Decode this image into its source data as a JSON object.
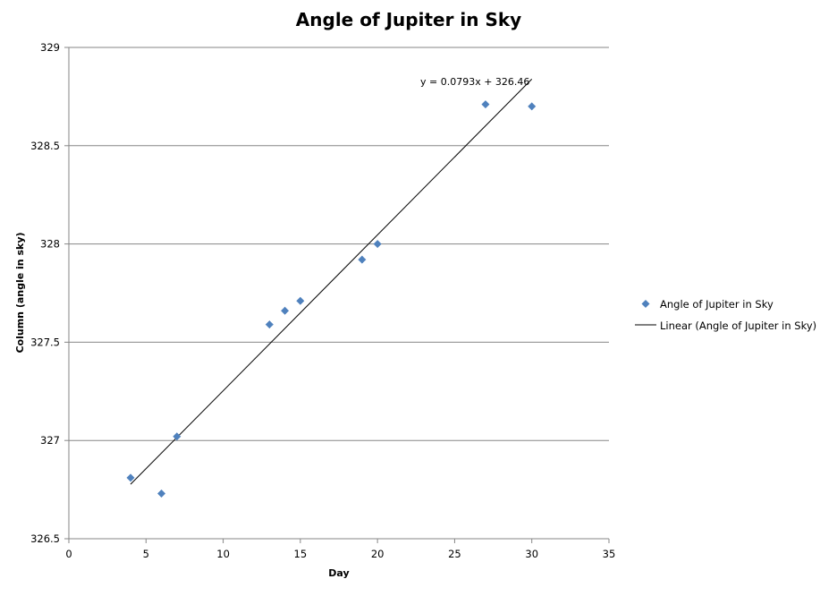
{
  "chart_data": {
    "type": "scatter",
    "title": "Angle of Jupiter in Sky",
    "xlabel": "Day",
    "ylabel": "Column (angle in sky)",
    "xlim": [
      0,
      35
    ],
    "ylim": [
      326.5,
      329
    ],
    "x_ticks": [
      0,
      5,
      10,
      15,
      20,
      25,
      30,
      35
    ],
    "y_ticks": [
      326.5,
      327,
      327.5,
      328,
      328.5,
      329
    ],
    "x_tick_labels": [
      "0",
      "5",
      "10",
      "15",
      "20",
      "25",
      "30",
      "35"
    ],
    "y_tick_labels": [
      "326.5",
      "327",
      "327.5",
      "328",
      "328.5",
      "329"
    ],
    "grid": "horizontal",
    "legend_position": "right",
    "series": [
      {
        "name": "Angle of Jupiter in Sky",
        "marker": "diamond",
        "color": "#4F81BD",
        "points": [
          {
            "x": 4,
            "y": 326.81
          },
          {
            "x": 6,
            "y": 326.73
          },
          {
            "x": 7,
            "y": 327.02
          },
          {
            "x": 13,
            "y": 327.59
          },
          {
            "x": 14,
            "y": 327.66
          },
          {
            "x": 15,
            "y": 327.71
          },
          {
            "x": 19,
            "y": 327.92
          },
          {
            "x": 20,
            "y": 328.0
          },
          {
            "x": 27,
            "y": 328.71
          },
          {
            "x": 30,
            "y": 328.7
          }
        ]
      }
    ],
    "trendline": {
      "name": "Linear (Angle of Jupiter in Sky)",
      "type": "linear",
      "slope": 0.0793,
      "intercept": 326.46,
      "x_range": [
        4,
        30
      ],
      "color": "#000000",
      "equation_label": "y = 0.0793x + 326.46"
    }
  }
}
